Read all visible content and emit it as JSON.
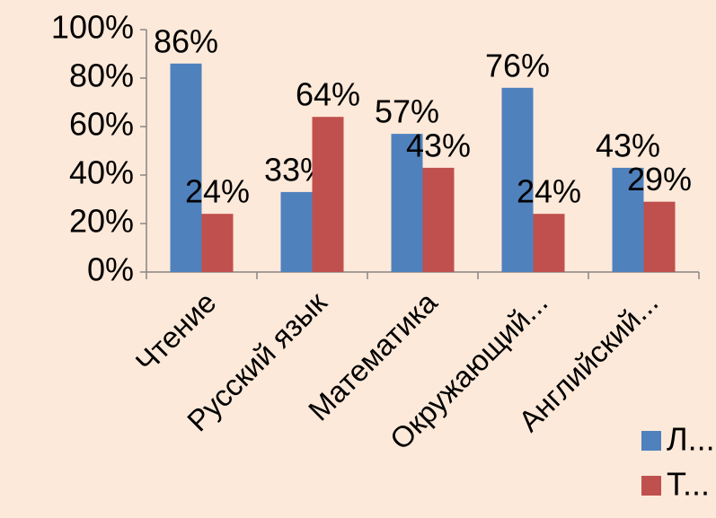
{
  "chart_data": {
    "type": "bar",
    "categories": [
      "Чтение",
      "Русский язык",
      "Математика",
      "Окружающий...",
      "Английский..."
    ],
    "series": [
      {
        "name": "Л...",
        "color": "#4f81bd",
        "values": [
          86,
          33,
          57,
          76,
          43
        ],
        "value_labels": [
          "86%",
          "33%",
          "57%",
          "76%",
          "43%"
        ]
      },
      {
        "name": "Т...",
        "color": "#c0504d",
        "values": [
          24,
          64,
          43,
          24,
          29
        ],
        "value_labels": [
          "24%",
          "64%",
          "43%",
          "24%",
          "29%"
        ]
      }
    ],
    "ylim": [
      0,
      100
    ],
    "yticks": [
      {
        "value": 0,
        "label": "0%"
      },
      {
        "value": 20,
        "label": "20%"
      },
      {
        "value": 40,
        "label": "40%"
      },
      {
        "value": 60,
        "label": "60%"
      },
      {
        "value": 80,
        "label": "80%"
      },
      {
        "value": 100,
        "label": "100%"
      }
    ],
    "grid": false,
    "legend": "bottom-right"
  }
}
